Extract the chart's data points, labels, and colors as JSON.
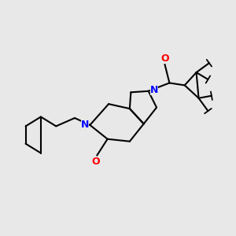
{
  "bg_color": "#e8e8e8",
  "bond_color": "#000000",
  "N_color": "#0000ff",
  "O_color": "#ff0000",
  "line_width": 1.5,
  "figsize": [
    3.0,
    3.0
  ],
  "dpi": 100,
  "xlim": [
    0,
    10
  ],
  "ylim": [
    0,
    10
  ],
  "fontsize": 8.5
}
